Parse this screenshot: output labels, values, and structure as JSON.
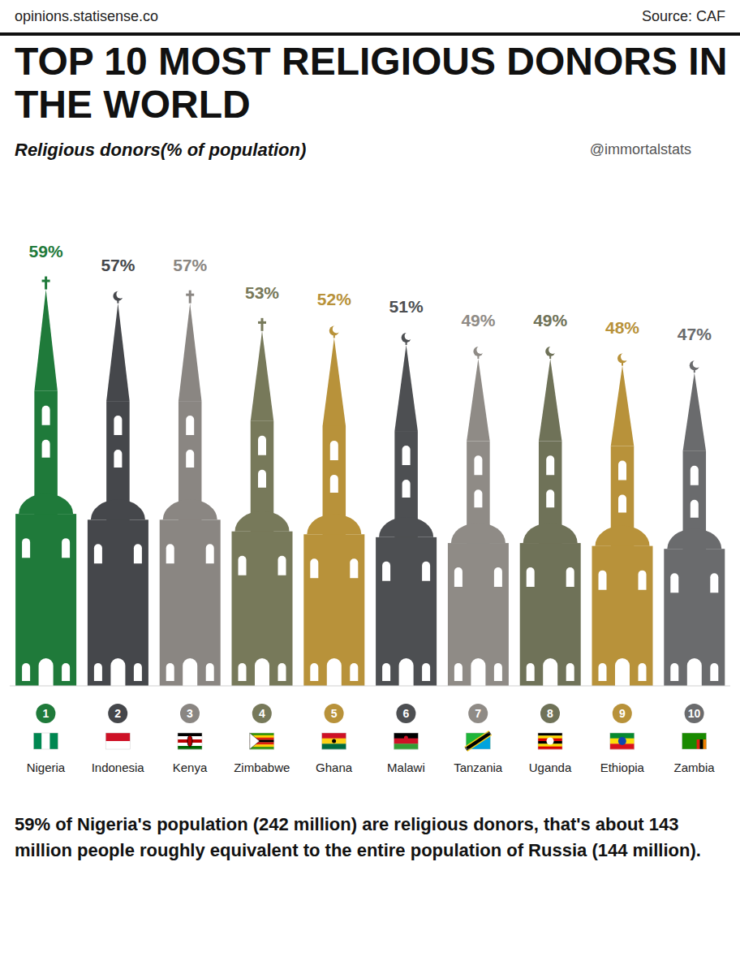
{
  "chart_data": {
    "type": "bar",
    "site": "opinions.statisense.co",
    "source": "Source: CAF",
    "title": "TOP 10 MOST RELIGIOUS DONORS IN THE WORLD",
    "subtitle": "Religious donors(% of population)",
    "handle": "@immortalstats",
    "categories": [
      "Nigeria",
      "Indonesia",
      "Kenya",
      "Zimbabwe",
      "Ghana",
      "Malawi",
      "Tanzania",
      "Uganda",
      "Ethiopia",
      "Zambia"
    ],
    "ranks": [
      1,
      2,
      3,
      4,
      5,
      6,
      7,
      8,
      9,
      10
    ],
    "values": [
      59,
      57,
      57,
      53,
      52,
      51,
      49,
      49,
      48,
      47
    ],
    "value_labels": [
      "59%",
      "57%",
      "57%",
      "53%",
      "52%",
      "51%",
      "49%",
      "49%",
      "48%",
      "47%"
    ],
    "colors": [
      "#1f7a3a",
      "#45474b",
      "#8a8682",
      "#77795a",
      "#b8923a",
      "#4d4f52",
      "#8f8b86",
      "#6f7258",
      "#b8923a",
      "#6a6b6d"
    ],
    "ylim": [
      0,
      60
    ],
    "grid": false,
    "data_labels": true,
    "tick_labels": "x",
    "annotation": "59% of Nigeria's population (242 million) are religious donors, that's about 143 million people roughly equivalent to the entire population of Russia (144 million)."
  }
}
